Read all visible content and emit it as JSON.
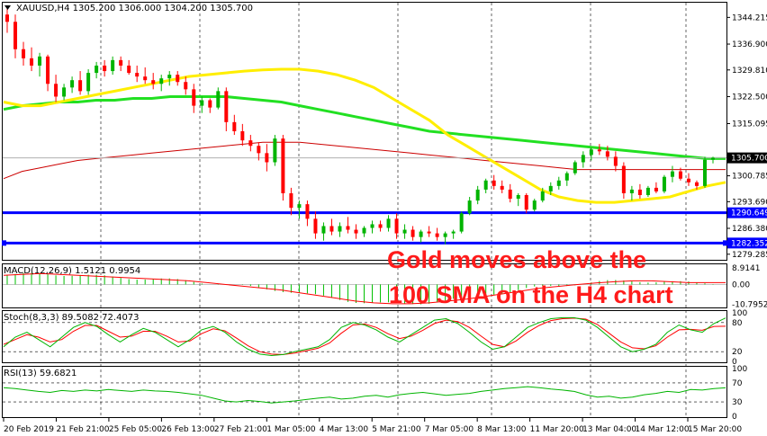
{
  "chart_data": {
    "type": "candlestick",
    "title": "XAUUSD,H4  1305.200 1306.000 1304.200 1305.700",
    "price": {
      "ylim": [
        1278.0,
        1348.0
      ],
      "ticks": [
        "1344.215",
        "1336.900",
        "1329.810",
        "1322.500",
        "1315.095",
        "1300.785",
        "1293.690",
        "1286.380",
        "1279.285"
      ],
      "last_price": {
        "label": "1305.700",
        "value": 1305.7
      },
      "levels": [
        {
          "label": "1290.649",
          "value": 1290.65,
          "color": "#0000ff"
        },
        {
          "label": "1282.352",
          "value": 1282.35,
          "color": "#0000ff"
        }
      ],
      "candles": [
        [
          1345.0,
          1346.5,
          1340.0,
          1343.0
        ],
        [
          1343.0,
          1345.0,
          1333.0,
          1335.5
        ],
        [
          1335.5,
          1337.5,
          1331.0,
          1333.0
        ],
        [
          1333.0,
          1336.0,
          1329.5,
          1331.0
        ],
        [
          1331.0,
          1334.5,
          1328.0,
          1333.5
        ],
        [
          1333.5,
          1334.0,
          1324.0,
          1326.0
        ],
        [
          1326.0,
          1328.5,
          1321.0,
          1322.5
        ],
        [
          1322.5,
          1326.0,
          1321.5,
          1325.0
        ],
        [
          1325.0,
          1328.0,
          1323.5,
          1327.0
        ],
        [
          1327.0,
          1329.5,
          1323.0,
          1324.0
        ],
        [
          1324.0,
          1330.0,
          1323.0,
          1329.0
        ],
        [
          1329.0,
          1332.0,
          1327.5,
          1331.0
        ],
        [
          1331.0,
          1332.5,
          1328.0,
          1329.5
        ],
        [
          1329.5,
          1333.5,
          1328.5,
          1332.5
        ],
        [
          1332.5,
          1333.5,
          1329.5,
          1331.0
        ],
        [
          1331.0,
          1332.5,
          1328.5,
          1329.0
        ],
        [
          1329.0,
          1331.0,
          1326.5,
          1328.0
        ],
        [
          1328.0,
          1330.5,
          1326.0,
          1327.0
        ],
        [
          1327.0,
          1329.0,
          1324.5,
          1326.0
        ],
        [
          1326.0,
          1328.5,
          1324.0,
          1327.5
        ],
        [
          1327.5,
          1329.5,
          1325.5,
          1328.5
        ],
        [
          1328.5,
          1329.5,
          1325.5,
          1326.5
        ],
        [
          1326.5,
          1328.0,
          1323.0,
          1324.5
        ],
        [
          1324.5,
          1326.0,
          1318.0,
          1320.0
        ],
        [
          1320.0,
          1322.5,
          1318.0,
          1321.5
        ],
        [
          1321.5,
          1322.0,
          1318.0,
          1319.5
        ],
        [
          1319.5,
          1325.0,
          1319.0,
          1324.0
        ],
        [
          1324.0,
          1325.0,
          1313.0,
          1315.5
        ],
        [
          1315.5,
          1317.5,
          1312.0,
          1313.0
        ],
        [
          1313.0,
          1315.0,
          1309.0,
          1310.5
        ],
        [
          1310.5,
          1312.0,
          1307.5,
          1309.0
        ],
        [
          1309.0,
          1310.0,
          1305.0,
          1307.0
        ],
        [
          1307.0,
          1309.5,
          1302.0,
          1304.5
        ],
        [
          1304.5,
          1312.0,
          1303.5,
          1311.0
        ],
        [
          1311.0,
          1312.0,
          1294.0,
          1296.0
        ],
        [
          1296.0,
          1297.5,
          1290.0,
          1292.0
        ],
        [
          1292.0,
          1294.0,
          1289.0,
          1293.0
        ],
        [
          1293.0,
          1294.0,
          1287.0,
          1289.0
        ],
        [
          1289.0,
          1291.0,
          1283.5,
          1285.0
        ],
        [
          1285.0,
          1288.0,
          1283.0,
          1287.0
        ],
        [
          1287.0,
          1289.0,
          1284.5,
          1285.5
        ],
        [
          1285.5,
          1288.0,
          1284.0,
          1287.0
        ],
        [
          1287.0,
          1289.5,
          1285.0,
          1286.0
        ],
        [
          1286.0,
          1287.5,
          1283.5,
          1285.0
        ],
        [
          1285.0,
          1287.0,
          1284.0,
          1286.5
        ],
        [
          1286.5,
          1288.5,
          1285.0,
          1287.5
        ],
        [
          1287.5,
          1288.5,
          1285.5,
          1286.5
        ],
        [
          1286.5,
          1290.0,
          1285.5,
          1289.0
        ],
        [
          1289.0,
          1290.5,
          1283.5,
          1285.0
        ],
        [
          1285.0,
          1287.5,
          1283.5,
          1286.0
        ],
        [
          1286.0,
          1287.0,
          1283.0,
          1284.0
        ],
        [
          1284.0,
          1286.0,
          1282.5,
          1285.5
        ],
        [
          1285.5,
          1287.0,
          1284.0,
          1285.0
        ],
        [
          1285.0,
          1286.5,
          1283.0,
          1284.0
        ],
        [
          1284.0,
          1285.5,
          1282.0,
          1285.0
        ],
        [
          1285.0,
          1286.0,
          1283.5,
          1285.5
        ],
        [
          1285.5,
          1291.0,
          1285.0,
          1290.5
        ],
        [
          1290.5,
          1295.0,
          1290.0,
          1294.0
        ],
        [
          1294.0,
          1298.0,
          1293.0,
          1297.0
        ],
        [
          1297.0,
          1300.0,
          1296.0,
          1299.5
        ],
        [
          1299.5,
          1301.0,
          1297.0,
          1298.0
        ],
        [
          1298.0,
          1299.5,
          1296.0,
          1297.0
        ],
        [
          1297.0,
          1298.5,
          1293.5,
          1294.5
        ],
        [
          1294.5,
          1296.0,
          1292.5,
          1295.5
        ],
        [
          1295.5,
          1296.0,
          1290.5,
          1291.5
        ],
        [
          1291.5,
          1294.5,
          1291.0,
          1294.0
        ],
        [
          1294.0,
          1297.5,
          1293.5,
          1296.5
        ],
        [
          1296.5,
          1299.0,
          1295.5,
          1298.0
        ],
        [
          1298.0,
          1300.5,
          1297.0,
          1299.5
        ],
        [
          1299.5,
          1302.0,
          1298.0,
          1301.5
        ],
        [
          1301.5,
          1305.0,
          1301.0,
          1304.5
        ],
        [
          1304.5,
          1307.5,
          1303.0,
          1306.5
        ],
        [
          1306.5,
          1308.5,
          1305.0,
          1308.0
        ],
        [
          1308.0,
          1309.5,
          1306.5,
          1307.5
        ],
        [
          1307.5,
          1309.0,
          1305.0,
          1306.0
        ],
        [
          1306.0,
          1307.5,
          1302.0,
          1303.5
        ],
        [
          1303.5,
          1304.5,
          1294.5,
          1296.0
        ],
        [
          1296.0,
          1298.0,
          1294.0,
          1297.0
        ],
        [
          1297.0,
          1298.5,
          1294.5,
          1295.5
        ],
        [
          1295.5,
          1298.0,
          1295.0,
          1297.5
        ],
        [
          1297.5,
          1299.0,
          1296.0,
          1296.5
        ],
        [
          1296.5,
          1301.0,
          1296.0,
          1300.5
        ],
        [
          1300.5,
          1303.5,
          1299.0,
          1302.0
        ],
        [
          1302.0,
          1303.0,
          1299.5,
          1300.0
        ],
        [
          1300.0,
          1301.5,
          1298.0,
          1299.0
        ],
        [
          1299.0,
          1299.5,
          1297.0,
          1298.0
        ],
        [
          1298.0,
          1306.0,
          1297.5,
          1305.2
        ],
        [
          1305.2,
          1306.0,
          1304.2,
          1305.7
        ]
      ],
      "sma_fast": [
        1321,
        1320,
        1320,
        1321,
        1322,
        1323,
        1324,
        1325,
        1326,
        1327,
        1328,
        1328.5,
        1329,
        1329.5,
        1329.8,
        1330,
        1330,
        1329.5,
        1328.5,
        1327,
        1325,
        1322,
        1319,
        1316,
        1312,
        1309,
        1306,
        1303,
        1300,
        1297,
        1295,
        1294,
        1293.5,
        1293.5,
        1294,
        1294.5,
        1295,
        1296.5,
        1298,
        1299
      ],
      "sma_slow": [
        1319,
        1320,
        1320.5,
        1321,
        1321,
        1321.5,
        1321.5,
        1322,
        1322,
        1322.5,
        1322.5,
        1322.5,
        1322.5,
        1322,
        1321.5,
        1321,
        1320,
        1319,
        1318,
        1317,
        1316,
        1315,
        1314,
        1313,
        1312.5,
        1312,
        1311.5,
        1311,
        1310.5,
        1310,
        1309.5,
        1309,
        1308.5,
        1308,
        1307.5,
        1307,
        1306.5,
        1306,
        1305.5,
        1305.5
      ],
      "sma_mid": [
        1300,
        1302,
        1303,
        1304,
        1305,
        1305.5,
        1306,
        1306.5,
        1307,
        1307.5,
        1308,
        1308.5,
        1309,
        1309.5,
        1310,
        1310,
        1310,
        1309.5,
        1309,
        1308.5,
        1308,
        1307.5,
        1307,
        1306.5,
        1306,
        1305.5,
        1305,
        1304.5,
        1304,
        1303.5,
        1303,
        1302.5,
        1302.5,
        1302.5,
        1302.5,
        1302.5,
        1302.5,
        1302.5,
        1302.5,
        1302.5
      ]
    },
    "macd": {
      "title": "MACD(12,26,9) 1.5121 0.9954",
      "ylim": [
        -12.0,
        10.0
      ],
      "ticks": [
        "8.9141",
        "0.00",
        "-10.7952"
      ],
      "signal": [
        5,
        5.5,
        6,
        5.5,
        5,
        4.5,
        4,
        3.5,
        3,
        2.5,
        2,
        1,
        0,
        -1,
        -2,
        -3,
        -4.5,
        -6,
        -7.5,
        -9,
        -10,
        -10.5,
        -10.5,
        -10,
        -9,
        -8,
        -6.5,
        -5,
        -3.5,
        -2,
        -1,
        0,
        0.8,
        1.5,
        2,
        2,
        1.5,
        1,
        1,
        1
      ]
    },
    "stoch": {
      "title": "Stoch(8,3,3) 89.5082 72.4073",
      "ticks": [
        "100",
        "80",
        "20",
        "0"
      ],
      "main": [
        30,
        50,
        60,
        45,
        30,
        50,
        70,
        80,
        72,
        55,
        40,
        55,
        68,
        60,
        45,
        30,
        45,
        65,
        72,
        60,
        40,
        25,
        15,
        12,
        14,
        20,
        25,
        30,
        45,
        70,
        80,
        75,
        65,
        50,
        40,
        55,
        70,
        85,
        88,
        78,
        60,
        40,
        25,
        30,
        50,
        70,
        80,
        88,
        90,
        90,
        85,
        70,
        50,
        30,
        20,
        25,
        35,
        60,
        75,
        65,
        60,
        78,
        89.5
      ],
      "signal": [
        35,
        45,
        55,
        50,
        40,
        45,
        62,
        74,
        74,
        62,
        50,
        52,
        62,
        62,
        52,
        40,
        42,
        57,
        67,
        63,
        48,
        32,
        20,
        15,
        14,
        17,
        22,
        27,
        38,
        58,
        75,
        77,
        70,
        57,
        47,
        52,
        64,
        78,
        85,
        82,
        70,
        52,
        35,
        30,
        42,
        60,
        74,
        84,
        88,
        89,
        87,
        76,
        58,
        40,
        28,
        26,
        32,
        50,
        65,
        66,
        64,
        72,
        72.4
      ]
    },
    "rsi": {
      "title": "RSI(13) 59.6821",
      "ticks": [
        "100",
        "70",
        "30",
        "0"
      ],
      "values": [
        60,
        58,
        55,
        52,
        50,
        54,
        52,
        55,
        53,
        56,
        54,
        52,
        55,
        53,
        52,
        50,
        47,
        44,
        38,
        32,
        30,
        33,
        31,
        28,
        30,
        32,
        35,
        38,
        40,
        36,
        38,
        42,
        44,
        40,
        45,
        48,
        50,
        47,
        44,
        46,
        48,
        52,
        55,
        58,
        60,
        62,
        60,
        57,
        55,
        52,
        45,
        40,
        42,
        38,
        40,
        45,
        48,
        52,
        50,
        56,
        55,
        58,
        59.7
      ]
    },
    "x_ticks": [
      "20 Feb 2019",
      "21 Feb 21:00",
      "25 Feb 05:00",
      "26 Feb 13:00",
      "27 Feb 21:00",
      "1 Mar 05:00",
      "4 Mar 13:00",
      "5 Mar 21:00",
      "7 Mar 05:00",
      "8 Mar 13:00",
      "11 Mar 20:00",
      "13 Mar 04:00",
      "14 Mar 12:00",
      "15 Mar 20:00"
    ],
    "annotation": [
      "Gold moves above the",
      "100 SMA on the H4 chart"
    ],
    "colors": {
      "bull": "#00b400",
      "bear": "#ff0000",
      "sma_fast": "#ffee00",
      "sma_slow": "#22e022",
      "sma_mid": "#cc0000",
      "level": "#0000ff",
      "grid": "#000000",
      "annotation": "#ff1a1a"
    }
  }
}
